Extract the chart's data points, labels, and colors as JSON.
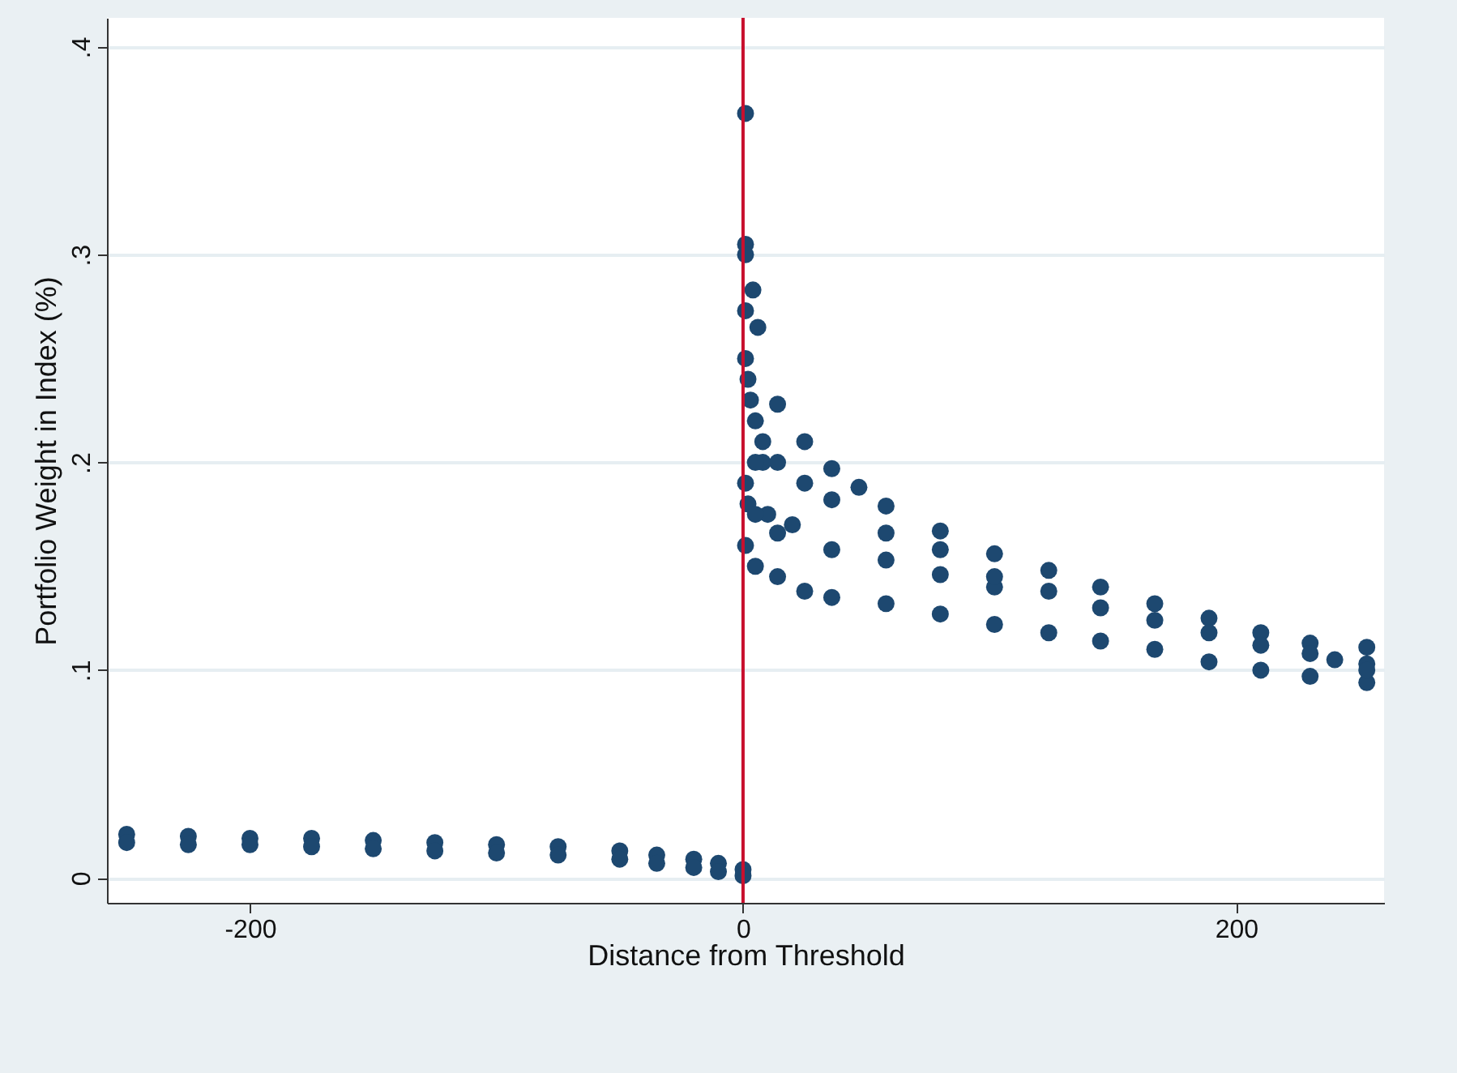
{
  "chart_data": {
    "type": "scatter",
    "xlabel": "Distance from Threshold",
    "ylabel": "Portfolio Weight in Index (%)",
    "xlim": [
      -258,
      260
    ],
    "ylim": [
      -0.012,
      0.414
    ],
    "xticks": [
      -200,
      0,
      200
    ],
    "yticks": [
      0,
      {
        "value": 0.1,
        "label": ".1"
      },
      {
        "value": 0.2,
        "label": ".2"
      },
      {
        "value": 0.3,
        "label": ".3"
      },
      {
        "value": 0.4,
        "label": ".4"
      }
    ],
    "grid": "y",
    "marker": "circle",
    "ref_lines": [
      {
        "axis": "x",
        "value": 0,
        "color": "#c8102e"
      }
    ],
    "series": [
      {
        "color": "#1d4870",
        "x": [
          -250,
          -250,
          -225,
          -225,
          -200,
          -200,
          -175,
          -175,
          -150,
          -150,
          -125,
          -125,
          -100,
          -100,
          -75,
          -75,
          -50,
          -50,
          -35,
          -35,
          -20,
          -20,
          -10,
          -10,
          0,
          0,
          1,
          1,
          1,
          4,
          1,
          6,
          1,
          2,
          3,
          5,
          8,
          1,
          2,
          1,
          14,
          25,
          36,
          47,
          58,
          80,
          102,
          124,
          145,
          167,
          189,
          210,
          230,
          253,
          14,
          25,
          36,
          58,
          80,
          102,
          124,
          145,
          167,
          189,
          210,
          230,
          253,
          14,
          36,
          58,
          80,
          102,
          14,
          25,
          36,
          58,
          80,
          102,
          124,
          145,
          167,
          189,
          210,
          230,
          253,
          253,
          240,
          8,
          10,
          20,
          5,
          5,
          5
        ],
        "values": [
          0.021,
          0.017,
          0.02,
          0.016,
          0.019,
          0.016,
          0.019,
          0.015,
          0.018,
          0.014,
          0.017,
          0.013,
          0.016,
          0.012,
          0.015,
          0.011,
          0.013,
          0.009,
          0.011,
          0.007,
          0.009,
          0.005,
          0.007,
          0.003,
          0.004,
          0.001,
          0.368,
          0.305,
          0.3,
          0.283,
          0.273,
          0.265,
          0.25,
          0.24,
          0.23,
          0.22,
          0.21,
          0.19,
          0.18,
          0.16,
          0.228,
          0.21,
          0.197,
          0.188,
          0.179,
          0.167,
          0.156,
          0.148,
          0.14,
          0.132,
          0.125,
          0.118,
          0.113,
          0.111,
          0.145,
          0.138,
          0.135,
          0.132,
          0.127,
          0.122,
          0.118,
          0.114,
          0.11,
          0.104,
          0.1,
          0.097,
          0.094,
          0.166,
          0.158,
          0.153,
          0.146,
          0.14,
          0.2,
          0.19,
          0.182,
          0.166,
          0.158,
          0.145,
          0.138,
          0.13,
          0.124,
          0.118,
          0.112,
          0.108,
          0.103,
          0.1,
          0.105,
          0.2,
          0.175,
          0.17,
          0.175,
          0.2,
          0.15
        ]
      }
    ]
  }
}
